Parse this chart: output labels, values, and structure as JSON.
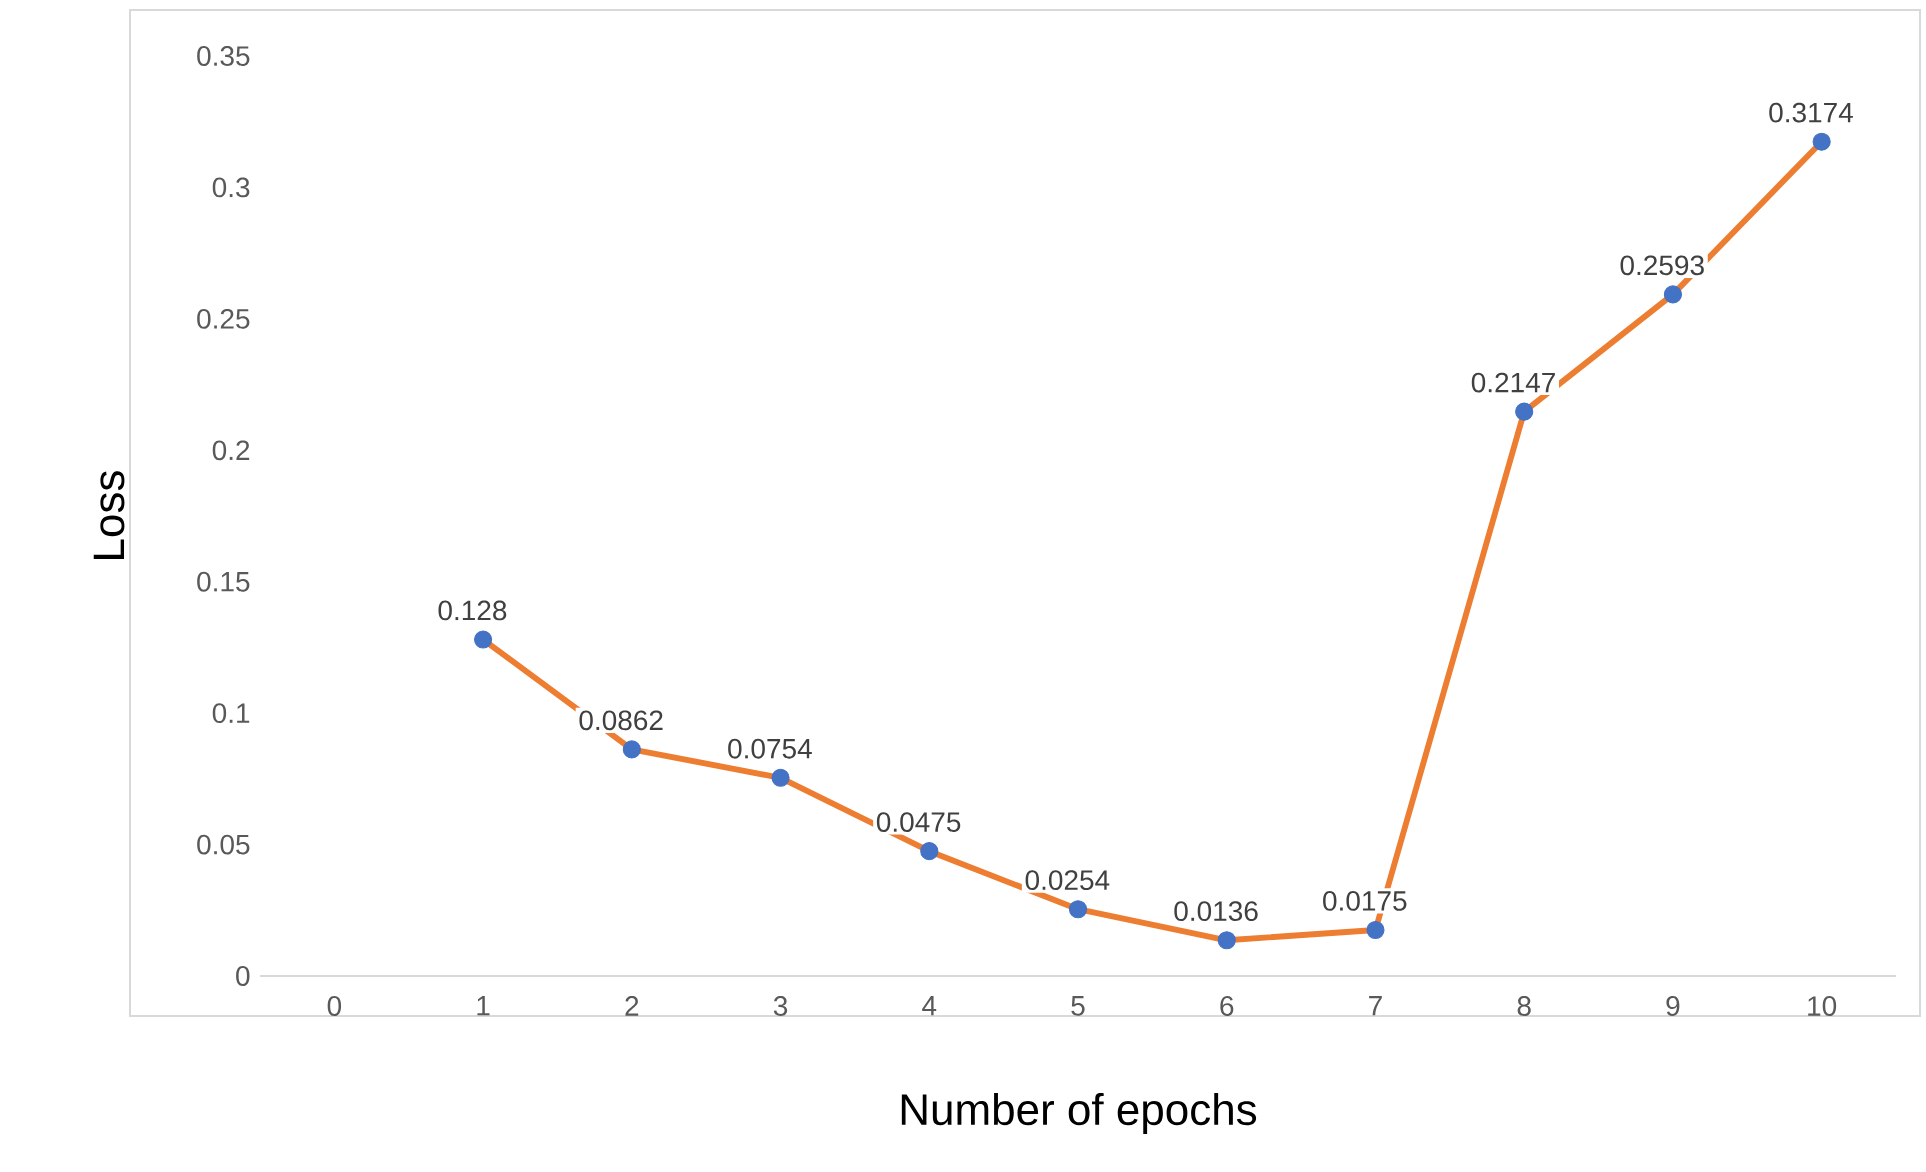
{
  "chart_data": {
    "type": "line",
    "xlabel": "Number of epochs",
    "ylabel": "Loss",
    "categories": [
      "0",
      "1",
      "2",
      "3",
      "4",
      "5",
      "6",
      "7",
      "8",
      "9",
      "10"
    ],
    "series": [
      {
        "color": "#ed7d31",
        "colors": [
          "#4472c4",
          "#4472c4",
          "#4472c4",
          "#4472c4",
          "#4472c4",
          "#4472c4",
          "#4472c4",
          "#4472c4",
          "#4472c4",
          "#4472c4",
          "#4472c4"
        ],
        "values": [
          null,
          0.128,
          0.0862,
          0.0754,
          0.0475,
          0.0254,
          0.0136,
          0.0175,
          0.2147,
          0.2593,
          0.3174
        ]
      }
    ],
    "ylim": [
      0,
      0.35
    ],
    "yticks": [
      0,
      0.05,
      0.1,
      0.15,
      0.2,
      0.25,
      0.3,
      0.35
    ],
    "data_labels": true,
    "grid": false,
    "legend": false,
    "marker": "circle",
    "line_style": "solid"
  }
}
